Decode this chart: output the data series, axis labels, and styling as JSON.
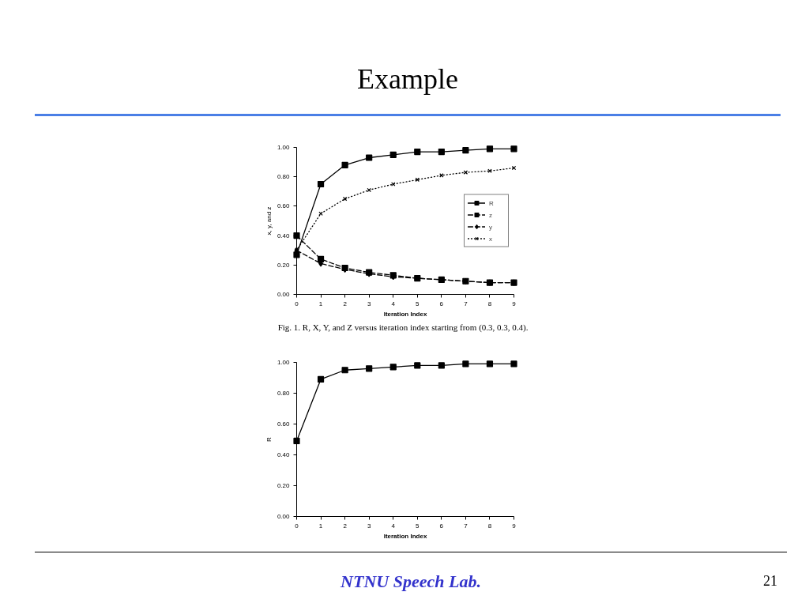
{
  "chart_data": [
    {
      "type": "line",
      "title": "Example",
      "xlabel": "Iteration Index",
      "ylabel": "x, y, and z",
      "x": [
        0,
        1,
        2,
        3,
        4,
        5,
        6,
        7,
        8,
        9
      ],
      "xlim": [
        0,
        9
      ],
      "xticks": [
        0,
        1,
        2,
        3,
        4,
        5,
        6,
        7,
        8,
        9
      ],
      "ylim": [
        0,
        1
      ],
      "yticks": [
        {
          "value": 0,
          "label": "0.00"
        },
        {
          "value": 0.2,
          "label": "0.20"
        },
        {
          "value": 0.4,
          "label": "0.40"
        },
        {
          "value": 0.6,
          "label": "0.60"
        },
        {
          "value": 0.8,
          "label": "0.80"
        },
        {
          "value": 1,
          "label": "1.00"
        }
      ],
      "series": [
        {
          "name": "R",
          "color": "#000000",
          "marker": "square",
          "line_style": "solid",
          "values": [
            0.27,
            0.75,
            0.88,
            0.93,
            0.95,
            0.97,
            0.97,
            0.98,
            0.99,
            0.99
          ]
        },
        {
          "name": "z",
          "color": "#000000",
          "marker": "square",
          "line_style": "dashed",
          "values": [
            0.4,
            0.24,
            0.18,
            0.15,
            0.13,
            0.11,
            0.1,
            0.09,
            0.08,
            0.08
          ]
        },
        {
          "name": "y",
          "color": "#000000",
          "marker": "diamond",
          "line_style": "dashed",
          "values": [
            0.3,
            0.21,
            0.17,
            0.14,
            0.12,
            0.11,
            0.1,
            0.09,
            0.08,
            0.08
          ]
        },
        {
          "name": "x",
          "color": "#000000",
          "marker": "cross",
          "line_style": "dotted",
          "values": [
            0.3,
            0.55,
            0.65,
            0.71,
            0.75,
            0.78,
            0.81,
            0.83,
            0.84,
            0.86
          ]
        }
      ],
      "legend": "right",
      "annotations": [
        "Fig. 1.   R, X, Y, and Z versus iteration index starting from (0.3, 0.3, 0.4)."
      ]
    },
    {
      "type": "line",
      "xlabel": "Iteration Index",
      "ylabel": "R",
      "x": [
        0,
        1,
        2,
        3,
        4,
        5,
        6,
        7,
        8,
        9
      ],
      "xlim": [
        0,
        9
      ],
      "xticks": [
        0,
        1,
        2,
        3,
        4,
        5,
        6,
        7,
        8,
        9
      ],
      "ylim": [
        0,
        1
      ],
      "yticks": [
        {
          "value": 0,
          "label": "0.00"
        },
        {
          "value": 0.2,
          "label": "0.20"
        },
        {
          "value": 0.4,
          "label": "0.40"
        },
        {
          "value": 0.6,
          "label": "0.60"
        },
        {
          "value": 0.8,
          "label": "0.80"
        },
        {
          "value": 1,
          "label": "1.00"
        }
      ],
      "series": [
        {
          "color": "#000000",
          "marker": "square",
          "line_style": "solid",
          "values": [
            0.49,
            0.89,
            0.95,
            0.96,
            0.97,
            0.98,
            0.98,
            0.99,
            0.99,
            0.99
          ]
        }
      ],
      "annotations": [
        "NTNU Speech Lab.",
        "21"
      ]
    }
  ]
}
